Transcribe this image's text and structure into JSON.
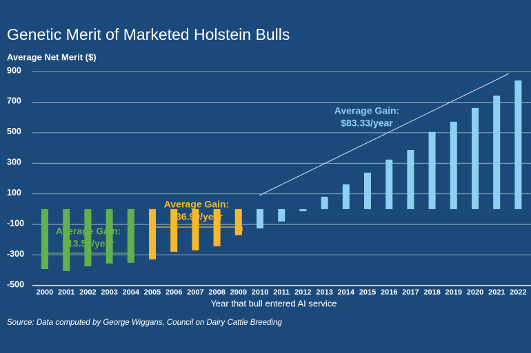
{
  "chart_data": {
    "type": "bar",
    "title": "Genetic Merit of Marketed Holstein Bulls",
    "y_label": "Average Net Merit ($)",
    "x_label": "Year that bull entered AI service",
    "source": "Source: Data computed by George Wiggans, Council on Dairy Cattle Breeding",
    "categories": [
      "2000",
      "2001",
      "2002",
      "2003",
      "2004",
      "2005",
      "2006",
      "2007",
      "2008",
      "2009",
      "2010",
      "2011",
      "2012",
      "2013",
      "2014",
      "2015",
      "2016",
      "2017",
      "2018",
      "2019",
      "2020",
      "2021",
      "2022"
    ],
    "values": [
      -392,
      -405,
      -374,
      -356,
      -351,
      -329,
      -279,
      -270,
      -243,
      -171,
      -126,
      -81,
      -14,
      81,
      162,
      239,
      324,
      387,
      505,
      572,
      662,
      743,
      842
    ],
    "colors": [
      "#62b04e",
      "#62b04e",
      "#62b04e",
      "#62b04e",
      "#62b04e",
      "#f7b72f",
      "#f7b72f",
      "#f7b72f",
      "#f7b72f",
      "#f7b72f",
      "#8dd0f2",
      "#8dd0f2",
      "#8dd0f2",
      "#8dd0f2",
      "#8dd0f2",
      "#8dd0f2",
      "#8dd0f2",
      "#8dd0f2",
      "#8dd0f2",
      "#8dd0f2",
      "#8dd0f2",
      "#8dd0f2",
      "#8dd0f2"
    ],
    "ylim": [
      -500,
      900
    ],
    "yticks": [
      -500,
      -300,
      -100,
      100,
      300,
      500,
      700,
      900
    ],
    "grid": true,
    "annotations": [
      {
        "lines": [
          "Average Gain:",
          "$13.50/year"
        ],
        "color": "#62b04e"
      },
      {
        "lines": [
          "Average Gain:",
          "$36.90/year"
        ],
        "color": "#f7b72f"
      },
      {
        "lines": [
          "Average Gain:",
          "$83.33/year"
        ],
        "color": "#8dd0f2"
      }
    ]
  }
}
